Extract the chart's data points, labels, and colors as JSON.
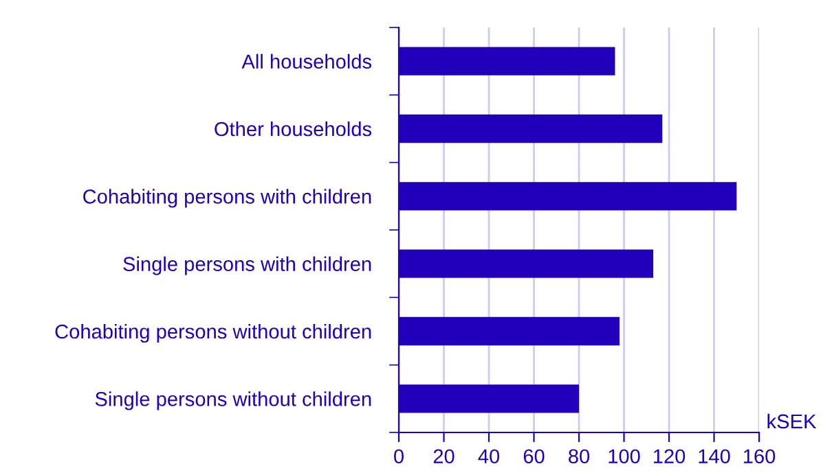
{
  "chart_data": {
    "type": "bar",
    "orientation": "horizontal",
    "xlabel": "kSEK",
    "categories": [
      "All households",
      "Other households",
      "Cohabiting persons with children",
      "Single persons with children",
      "Cohabiting persons without children",
      "Single persons without children"
    ],
    "values": [
      96,
      117,
      150,
      113,
      98,
      80
    ],
    "color": "#2200bb",
    "xlim": [
      0,
      160
    ],
    "xticks": [
      0,
      20,
      40,
      60,
      80,
      100,
      120,
      140,
      160
    ],
    "grid": "x",
    "legend": false
  }
}
